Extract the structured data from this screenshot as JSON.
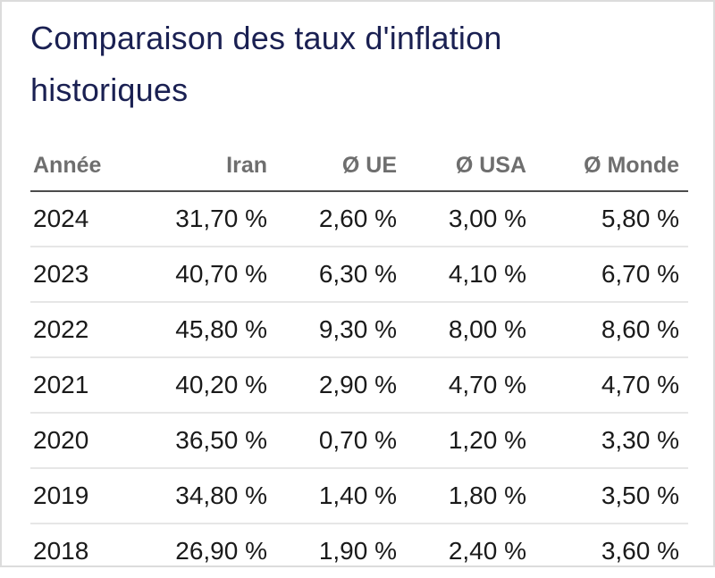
{
  "header": {
    "title": "Comparaison des taux d'inflation historiques"
  },
  "colors": {
    "title_navy": "#1a2052",
    "header_gray": "#6e6e6e",
    "data_text": "#1a1a1a",
    "header_rule": "#4c4c4c",
    "row_separator": "#e6e6e6",
    "page_border": "#dcdcdc",
    "background": "#ffffff"
  },
  "chart_data": {
    "type": "table",
    "title": "Comparaison des taux d'inflation historiques",
    "columns": [
      "Année",
      "Iran",
      "Ø UE",
      "Ø USA",
      "Ø Monde"
    ],
    "rows": [
      [
        "2024",
        "31,70 %",
        "2,60 %",
        "3,00 %",
        "5,80 %"
      ],
      [
        "2023",
        "40,70 %",
        "6,30 %",
        "4,10 %",
        "6,70 %"
      ],
      [
        "2022",
        "45,80 %",
        "9,30 %",
        "8,00 %",
        "8,60 %"
      ],
      [
        "2021",
        "40,20 %",
        "2,90 %",
        "4,70 %",
        "4,70 %"
      ],
      [
        "2020",
        "36,50 %",
        "0,70 %",
        "1,20 %",
        "3,30 %"
      ],
      [
        "2019",
        "34,80 %",
        "1,40 %",
        "1,80 %",
        "3,50 %"
      ],
      [
        "2018",
        "26,90 %",
        "1,90 %",
        "2,40 %",
        "3,60 %"
      ]
    ],
    "notes": {
      "alignment": "year column left-aligned, value columns right-aligned",
      "legend_position": "none",
      "grid": "horizontal separators only"
    }
  }
}
